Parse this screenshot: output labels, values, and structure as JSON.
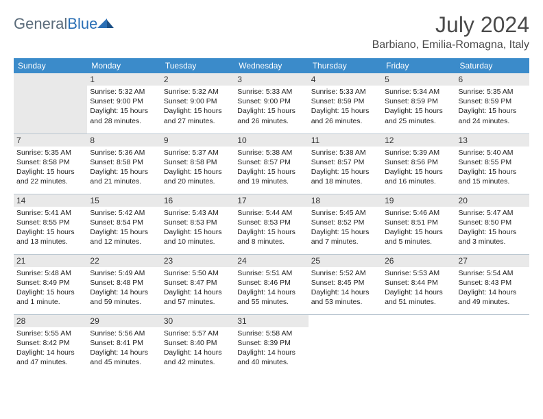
{
  "brand": {
    "name_part1": "General",
    "name_part2": "Blue"
  },
  "title": "July 2024",
  "location": "Barbiano, Emilia-Romagna, Italy",
  "colors": {
    "header_bg": "#3b8bca",
    "header_text": "#ffffff",
    "daynum_bg": "#e9e9e9",
    "border": "#b8c5d0",
    "text": "#333333",
    "logo_gray": "#5a6b7a",
    "logo_blue": "#2a6fb5"
  },
  "day_headers": [
    "Sunday",
    "Monday",
    "Tuesday",
    "Wednesday",
    "Thursday",
    "Friday",
    "Saturday"
  ],
  "weeks": [
    [
      {
        "day": "",
        "sunrise": "",
        "sunset": "",
        "daylight": ""
      },
      {
        "day": "1",
        "sunrise": "Sunrise: 5:32 AM",
        "sunset": "Sunset: 9:00 PM",
        "daylight": "Daylight: 15 hours and 28 minutes."
      },
      {
        "day": "2",
        "sunrise": "Sunrise: 5:32 AM",
        "sunset": "Sunset: 9:00 PM",
        "daylight": "Daylight: 15 hours and 27 minutes."
      },
      {
        "day": "3",
        "sunrise": "Sunrise: 5:33 AM",
        "sunset": "Sunset: 9:00 PM",
        "daylight": "Daylight: 15 hours and 26 minutes."
      },
      {
        "day": "4",
        "sunrise": "Sunrise: 5:33 AM",
        "sunset": "Sunset: 8:59 PM",
        "daylight": "Daylight: 15 hours and 26 minutes."
      },
      {
        "day": "5",
        "sunrise": "Sunrise: 5:34 AM",
        "sunset": "Sunset: 8:59 PM",
        "daylight": "Daylight: 15 hours and 25 minutes."
      },
      {
        "day": "6",
        "sunrise": "Sunrise: 5:35 AM",
        "sunset": "Sunset: 8:59 PM",
        "daylight": "Daylight: 15 hours and 24 minutes."
      }
    ],
    [
      {
        "day": "7",
        "sunrise": "Sunrise: 5:35 AM",
        "sunset": "Sunset: 8:58 PM",
        "daylight": "Daylight: 15 hours and 22 minutes."
      },
      {
        "day": "8",
        "sunrise": "Sunrise: 5:36 AM",
        "sunset": "Sunset: 8:58 PM",
        "daylight": "Daylight: 15 hours and 21 minutes."
      },
      {
        "day": "9",
        "sunrise": "Sunrise: 5:37 AM",
        "sunset": "Sunset: 8:58 PM",
        "daylight": "Daylight: 15 hours and 20 minutes."
      },
      {
        "day": "10",
        "sunrise": "Sunrise: 5:38 AM",
        "sunset": "Sunset: 8:57 PM",
        "daylight": "Daylight: 15 hours and 19 minutes."
      },
      {
        "day": "11",
        "sunrise": "Sunrise: 5:38 AM",
        "sunset": "Sunset: 8:57 PM",
        "daylight": "Daylight: 15 hours and 18 minutes."
      },
      {
        "day": "12",
        "sunrise": "Sunrise: 5:39 AM",
        "sunset": "Sunset: 8:56 PM",
        "daylight": "Daylight: 15 hours and 16 minutes."
      },
      {
        "day": "13",
        "sunrise": "Sunrise: 5:40 AM",
        "sunset": "Sunset: 8:55 PM",
        "daylight": "Daylight: 15 hours and 15 minutes."
      }
    ],
    [
      {
        "day": "14",
        "sunrise": "Sunrise: 5:41 AM",
        "sunset": "Sunset: 8:55 PM",
        "daylight": "Daylight: 15 hours and 13 minutes."
      },
      {
        "day": "15",
        "sunrise": "Sunrise: 5:42 AM",
        "sunset": "Sunset: 8:54 PM",
        "daylight": "Daylight: 15 hours and 12 minutes."
      },
      {
        "day": "16",
        "sunrise": "Sunrise: 5:43 AM",
        "sunset": "Sunset: 8:53 PM",
        "daylight": "Daylight: 15 hours and 10 minutes."
      },
      {
        "day": "17",
        "sunrise": "Sunrise: 5:44 AM",
        "sunset": "Sunset: 8:53 PM",
        "daylight": "Daylight: 15 hours and 8 minutes."
      },
      {
        "day": "18",
        "sunrise": "Sunrise: 5:45 AM",
        "sunset": "Sunset: 8:52 PM",
        "daylight": "Daylight: 15 hours and 7 minutes."
      },
      {
        "day": "19",
        "sunrise": "Sunrise: 5:46 AM",
        "sunset": "Sunset: 8:51 PM",
        "daylight": "Daylight: 15 hours and 5 minutes."
      },
      {
        "day": "20",
        "sunrise": "Sunrise: 5:47 AM",
        "sunset": "Sunset: 8:50 PM",
        "daylight": "Daylight: 15 hours and 3 minutes."
      }
    ],
    [
      {
        "day": "21",
        "sunrise": "Sunrise: 5:48 AM",
        "sunset": "Sunset: 8:49 PM",
        "daylight": "Daylight: 15 hours and 1 minute."
      },
      {
        "day": "22",
        "sunrise": "Sunrise: 5:49 AM",
        "sunset": "Sunset: 8:48 PM",
        "daylight": "Daylight: 14 hours and 59 minutes."
      },
      {
        "day": "23",
        "sunrise": "Sunrise: 5:50 AM",
        "sunset": "Sunset: 8:47 PM",
        "daylight": "Daylight: 14 hours and 57 minutes."
      },
      {
        "day": "24",
        "sunrise": "Sunrise: 5:51 AM",
        "sunset": "Sunset: 8:46 PM",
        "daylight": "Daylight: 14 hours and 55 minutes."
      },
      {
        "day": "25",
        "sunrise": "Sunrise: 5:52 AM",
        "sunset": "Sunset: 8:45 PM",
        "daylight": "Daylight: 14 hours and 53 minutes."
      },
      {
        "day": "26",
        "sunrise": "Sunrise: 5:53 AM",
        "sunset": "Sunset: 8:44 PM",
        "daylight": "Daylight: 14 hours and 51 minutes."
      },
      {
        "day": "27",
        "sunrise": "Sunrise: 5:54 AM",
        "sunset": "Sunset: 8:43 PM",
        "daylight": "Daylight: 14 hours and 49 minutes."
      }
    ],
    [
      {
        "day": "28",
        "sunrise": "Sunrise: 5:55 AM",
        "sunset": "Sunset: 8:42 PM",
        "daylight": "Daylight: 14 hours and 47 minutes."
      },
      {
        "day": "29",
        "sunrise": "Sunrise: 5:56 AM",
        "sunset": "Sunset: 8:41 PM",
        "daylight": "Daylight: 14 hours and 45 minutes."
      },
      {
        "day": "30",
        "sunrise": "Sunrise: 5:57 AM",
        "sunset": "Sunset: 8:40 PM",
        "daylight": "Daylight: 14 hours and 42 minutes."
      },
      {
        "day": "31",
        "sunrise": "Sunrise: 5:58 AM",
        "sunset": "Sunset: 8:39 PM",
        "daylight": "Daylight: 14 hours and 40 minutes."
      },
      {
        "day": "",
        "sunrise": "",
        "sunset": "",
        "daylight": ""
      },
      {
        "day": "",
        "sunrise": "",
        "sunset": "",
        "daylight": ""
      },
      {
        "day": "",
        "sunrise": "",
        "sunset": "",
        "daylight": ""
      }
    ]
  ]
}
